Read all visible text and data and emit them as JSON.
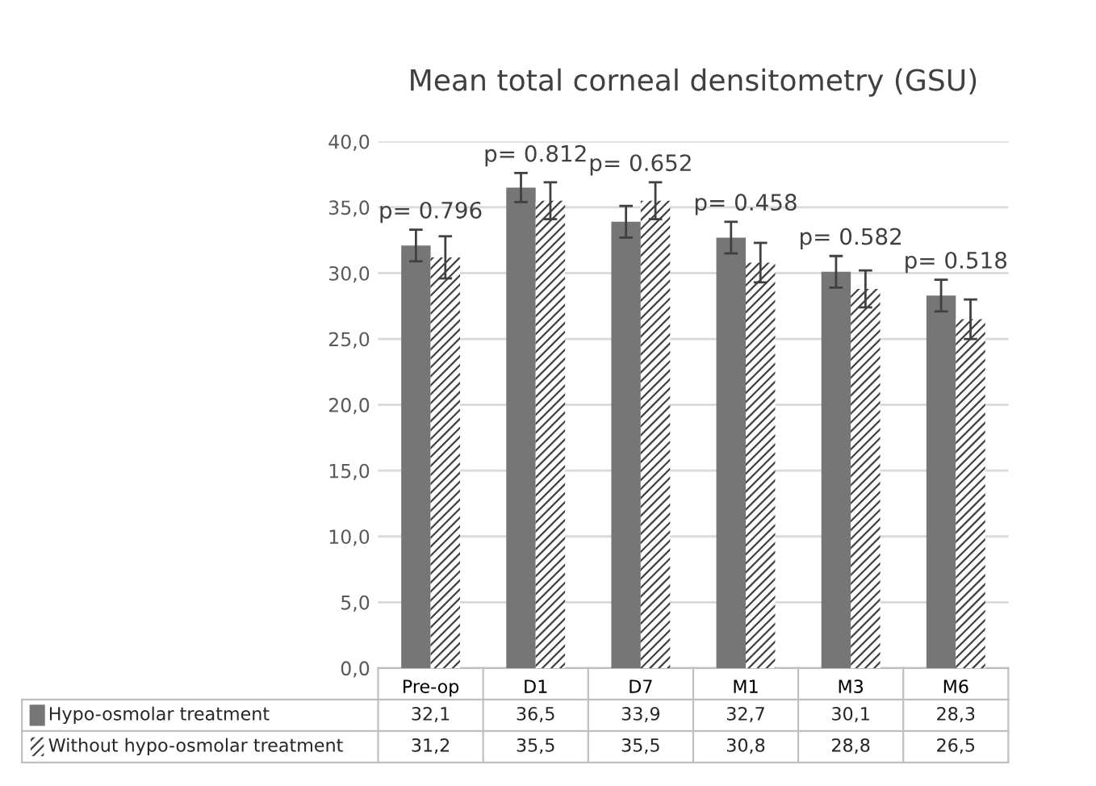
{
  "chart_data": {
    "type": "bar",
    "title": "Mean total corneal densitometry (GSU)",
    "categories": [
      "Pre-op",
      "D1",
      "D7",
      "M1",
      "M3",
      "M6"
    ],
    "series": [
      {
        "name": "Hypo-osmolar treatment",
        "color": "#767676",
        "values": [
          32.1,
          36.5,
          33.9,
          32.7,
          30.1,
          28.3
        ],
        "errors": [
          1.2,
          1.1,
          1.2,
          1.2,
          1.2,
          1.2
        ],
        "value_labels": [
          "32,1",
          "36,5",
          "33,9",
          "32,7",
          "30,1",
          "28,3"
        ]
      },
      {
        "name": "Without hypo-osmolar treatment",
        "color": "#404040",
        "values": [
          31.2,
          35.5,
          35.5,
          30.8,
          28.8,
          26.5
        ],
        "errors": [
          1.6,
          1.4,
          1.4,
          1.5,
          1.4,
          1.5
        ],
        "value_labels": [
          "31,2",
          "35,5",
          "35,5",
          "30,8",
          "28,8",
          "26,5"
        ]
      }
    ],
    "ylim": [
      0,
      40
    ],
    "yticks": [
      {
        "value": 0,
        "label": "0,0"
      },
      {
        "value": 5,
        "label": "5,0"
      },
      {
        "value": 10,
        "label": "10,0"
      },
      {
        "value": 15,
        "label": "15,0"
      },
      {
        "value": 20,
        "label": "20,0"
      },
      {
        "value": 25,
        "label": "25,0"
      },
      {
        "value": 30,
        "label": "30,0"
      },
      {
        "value": 35,
        "label": "35,0"
      },
      {
        "value": 40,
        "label": "40,0"
      }
    ],
    "grid": "y",
    "legend": "bottom",
    "annotations": [
      "p= 0.796",
      "p= 0.812",
      "p= 0.652",
      "p= 0.458",
      "p= 0.582",
      "p= 0.518"
    ]
  }
}
